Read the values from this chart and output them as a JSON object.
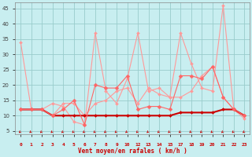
{
  "bg_color": "#c8eef0",
  "grid_color": "#99cccc",
  "xlabel": "Vent moyen/en rafales ( km/h )",
  "xlabel_color": "#cc0000",
  "xtick_labels": [
    "0",
    "1",
    "2",
    "3",
    "4",
    "5",
    "6",
    "7",
    "8",
    "9",
    "10",
    "12",
    "13",
    "14",
    "15",
    "17",
    "18",
    "19",
    "20",
    "21",
    "22",
    "23"
  ],
  "ytick_labels": [
    "5",
    "10",
    "15",
    "20",
    "25",
    "30",
    "35",
    "40",
    "45"
  ],
  "ytick_vals": [
    5,
    10,
    15,
    20,
    25,
    30,
    35,
    40,
    45
  ],
  "ylim": [
    4,
    47
  ],
  "xlim": [
    -0.5,
    21.5
  ],
  "n_xticks": 22,
  "series": [
    {
      "name": "rafales_light",
      "xi": [
        0,
        1,
        2,
        3,
        4,
        5,
        6,
        7,
        8,
        9,
        10,
        11,
        12,
        13,
        14,
        15,
        16,
        17,
        18,
        19,
        20,
        21
      ],
      "y": [
        34,
        12,
        12,
        14,
        13,
        8,
        7,
        37,
        18,
        14,
        22,
        37,
        18,
        19,
        16,
        37,
        27,
        19,
        18,
        46,
        12,
        10
      ],
      "color": "#ff9999",
      "linewidth": 0.8,
      "marker": "D",
      "markersize": 2.0
    },
    {
      "name": "vent_moyen_light",
      "xi": [
        0,
        1,
        2,
        3,
        4,
        5,
        6,
        7,
        8,
        9,
        10,
        11,
        12,
        13,
        14,
        15,
        16,
        17,
        18,
        19,
        20,
        21
      ],
      "y": [
        12,
        12,
        12,
        10,
        14,
        14,
        10,
        14,
        15,
        18,
        19,
        14,
        19,
        17,
        16,
        16,
        18,
        23,
        26,
        16,
        12,
        9
      ],
      "color": "#ff9999",
      "linewidth": 0.8,
      "marker": "D",
      "markersize": 2.0
    },
    {
      "name": "vent_moyen_dark",
      "xi": [
        0,
        1,
        2,
        3,
        4,
        5,
        6,
        7,
        8,
        9,
        10,
        11,
        12,
        13,
        14,
        15,
        16,
        17,
        18,
        19,
        20,
        21
      ],
      "y": [
        12,
        12,
        12,
        10,
        10,
        10,
        10,
        10,
        10,
        10,
        10,
        10,
        10,
        10,
        10,
        11,
        11,
        11,
        11,
        12,
        12,
        10
      ],
      "color": "#cc0000",
      "linewidth": 1.5,
      "marker": "D",
      "markersize": 2.0
    },
    {
      "name": "rafales_mid",
      "xi": [
        0,
        1,
        2,
        3,
        4,
        5,
        6,
        7,
        8,
        9,
        10,
        11,
        12,
        13,
        14,
        15,
        16,
        17,
        18,
        19,
        20,
        21
      ],
      "y": [
        12,
        12,
        12,
        10,
        12,
        15,
        7,
        20,
        19,
        19,
        23,
        12,
        13,
        13,
        12,
        23,
        23,
        22,
        26,
        16,
        12,
        10
      ],
      "color": "#ff6666",
      "linewidth": 0.8,
      "marker": "D",
      "markersize": 2.5
    }
  ],
  "arrow_xi": [
    0,
    1,
    2,
    3,
    4,
    5,
    6,
    7,
    8,
    9,
    10,
    11,
    12,
    13,
    14,
    15,
    16,
    17,
    18,
    19,
    20,
    21
  ],
  "arrow_color": "#cc0000"
}
